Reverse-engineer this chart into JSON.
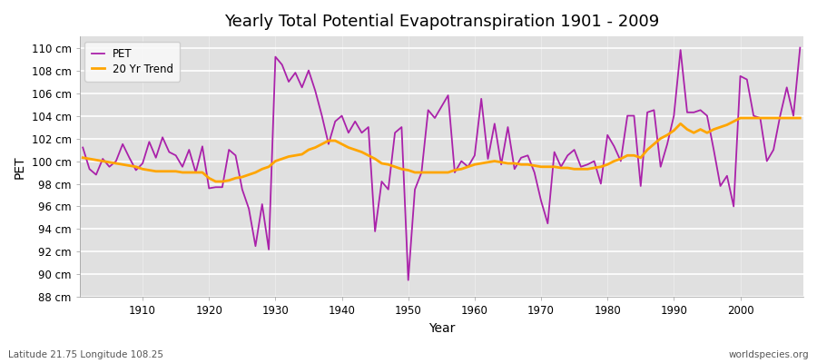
{
  "title": "Yearly Total Potential Evapotranspiration 1901 - 2009",
  "xlabel": "Year",
  "ylabel": "PET",
  "subtitle_left": "Latitude 21.75 Longitude 108.25",
  "subtitle_right": "worldspecies.org",
  "ylim": [
    88,
    111
  ],
  "yticks": [
    88,
    90,
    92,
    94,
    96,
    98,
    100,
    102,
    104,
    106,
    108,
    110
  ],
  "ytick_labels": [
    "88 cm",
    "90 cm",
    "92 cm",
    "94 cm",
    "96 cm",
    "98 cm",
    "100 cm",
    "102 cm",
    "104 cm",
    "106 cm",
    "108 cm",
    "110 cm"
  ],
  "xticks": [
    1910,
    1920,
    1930,
    1940,
    1950,
    1960,
    1970,
    1980,
    1990,
    2000
  ],
  "pet_color": "#AA22AA",
  "trend_color": "#FFA500",
  "fig_bg_color": "#FFFFFF",
  "plot_bg_color": "#E0E0E0",
  "legend_bg": "#F5F5F5",
  "years": [
    1901,
    1902,
    1903,
    1904,
    1905,
    1906,
    1907,
    1908,
    1909,
    1910,
    1911,
    1912,
    1913,
    1914,
    1915,
    1916,
    1917,
    1918,
    1919,
    1920,
    1921,
    1922,
    1923,
    1924,
    1925,
    1926,
    1927,
    1928,
    1929,
    1930,
    1931,
    1932,
    1933,
    1934,
    1935,
    1936,
    1937,
    1938,
    1939,
    1940,
    1941,
    1942,
    1943,
    1944,
    1945,
    1946,
    1947,
    1948,
    1949,
    1950,
    1951,
    1952,
    1953,
    1954,
    1955,
    1956,
    1957,
    1958,
    1959,
    1960,
    1961,
    1962,
    1963,
    1964,
    1965,
    1966,
    1967,
    1968,
    1969,
    1970,
    1971,
    1972,
    1973,
    1974,
    1975,
    1976,
    1977,
    1978,
    1979,
    1980,
    1981,
    1982,
    1983,
    1984,
    1985,
    1986,
    1987,
    1988,
    1989,
    1990,
    1991,
    1992,
    1993,
    1994,
    1995,
    1996,
    1997,
    1998,
    1999,
    2000,
    2001,
    2002,
    2003,
    2004,
    2005,
    2006,
    2007,
    2008,
    2009
  ],
  "pet": [
    101.2,
    99.3,
    98.8,
    100.2,
    99.5,
    100.0,
    101.5,
    100.3,
    99.2,
    99.8,
    101.7,
    100.3,
    102.1,
    100.8,
    100.5,
    99.5,
    101.0,
    99.0,
    101.3,
    97.6,
    97.7,
    97.7,
    101.0,
    100.5,
    97.5,
    95.8,
    92.5,
    96.2,
    92.2,
    109.2,
    108.5,
    107.0,
    107.8,
    106.5,
    108.0,
    106.2,
    104.0,
    101.5,
    103.5,
    104.0,
    102.5,
    103.5,
    102.5,
    103.0,
    93.8,
    98.2,
    97.5,
    102.5,
    103.0,
    89.5,
    97.5,
    99.0,
    104.5,
    103.8,
    104.8,
    105.8,
    99.0,
    100.0,
    99.5,
    100.5,
    105.5,
    100.2,
    103.3,
    99.7,
    103.0,
    99.3,
    100.3,
    100.5,
    99.0,
    96.5,
    94.5,
    100.8,
    99.5,
    100.5,
    101.0,
    99.5,
    99.7,
    100.0,
    98.0,
    102.3,
    101.3,
    100.0,
    104.0,
    104.0,
    97.8,
    104.3,
    104.5,
    99.5,
    101.5,
    104.0,
    109.8,
    104.3,
    104.3,
    104.5,
    104.0,
    101.0,
    97.8,
    98.7,
    96.0,
    107.5,
    107.2,
    104.0,
    103.8,
    100.0,
    101.0,
    104.0,
    106.5,
    104.0,
    110.0
  ],
  "trend": [
    100.3,
    100.2,
    100.1,
    100.0,
    99.9,
    99.8,
    99.7,
    99.6,
    99.5,
    99.3,
    99.2,
    99.1,
    99.1,
    99.1,
    99.1,
    99.0,
    99.0,
    99.0,
    99.0,
    98.5,
    98.2,
    98.2,
    98.3,
    98.5,
    98.6,
    98.8,
    99.0,
    99.3,
    99.5,
    100.0,
    100.2,
    100.4,
    100.5,
    100.6,
    101.0,
    101.2,
    101.5,
    101.8,
    101.8,
    101.5,
    101.2,
    101.0,
    100.8,
    100.5,
    100.2,
    99.8,
    99.7,
    99.5,
    99.3,
    99.2,
    99.0,
    99.0,
    99.0,
    99.0,
    99.0,
    99.0,
    99.2,
    99.3,
    99.5,
    99.7,
    99.8,
    99.9,
    100.0,
    99.9,
    99.8,
    99.8,
    99.7,
    99.7,
    99.6,
    99.5,
    99.5,
    99.5,
    99.4,
    99.4,
    99.3,
    99.3,
    99.3,
    99.4,
    99.5,
    99.7,
    100.0,
    100.2,
    100.5,
    100.5,
    100.3,
    101.0,
    101.5,
    102.0,
    102.3,
    102.7,
    103.3,
    102.8,
    102.5,
    102.8,
    102.5,
    102.8,
    103.0,
    103.2,
    103.5,
    103.8,
    103.8,
    103.8,
    103.8,
    103.8,
    103.8,
    103.8,
    103.8,
    103.8,
    103.8
  ]
}
